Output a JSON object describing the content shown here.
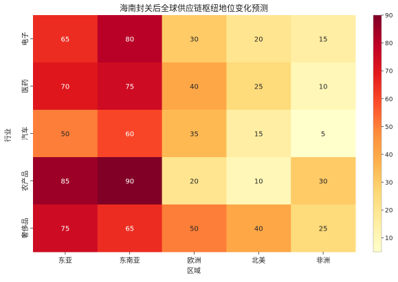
{
  "chart_data": {
    "type": "heatmap",
    "title": "海南封关后全球供应链枢纽地位变化预测",
    "xlabel": "区域",
    "ylabel": "行业",
    "x_categories": [
      "东亚",
      "东南亚",
      "欧洲",
      "北美",
      "非洲"
    ],
    "y_categories": [
      "电子",
      "医药",
      "汽车",
      "农产品",
      "奢侈品"
    ],
    "values": [
      [
        65,
        80,
        30,
        20,
        15
      ],
      [
        70,
        75,
        40,
        25,
        10
      ],
      [
        50,
        60,
        35,
        15,
        5
      ],
      [
        85,
        90,
        20,
        10,
        30
      ],
      [
        75,
        65,
        50,
        40,
        25
      ]
    ],
    "colorscale": "YlOrRd",
    "vmin": 5,
    "vmax": 90,
    "colorbar_ticks": [
      10,
      20,
      30,
      40,
      50,
      60,
      70,
      80,
      90
    ],
    "grid": false
  }
}
